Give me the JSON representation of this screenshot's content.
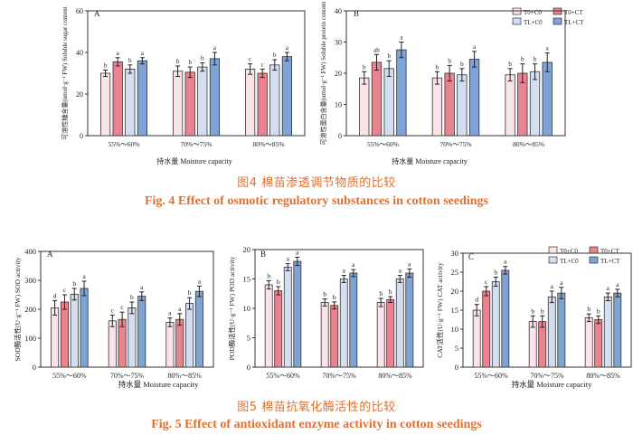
{
  "colors": {
    "T0C0": "#fbe4e7",
    "T0CT": "#e8838f",
    "TLC0": "#d3dff0",
    "TLCT": "#7ea3d6",
    "caption": "#e07030"
  },
  "fig4": {
    "caption_cn": "图4 棉苗渗透调节物质的比较",
    "caption_en": "Fig. 4 Effect of osmotic regulatory substances in cotton seedings",
    "xlabel": "持水量 Moisture capacity"
  },
  "fig5": {
    "caption_cn": "图5 棉苗抗氧化酶活性的比较",
    "caption_en": "Fig. 5 Effect of antioxidant enzyme activity in cotton seedings",
    "xlabel": "持水量 Moisture capacity"
  },
  "chart_data": [
    {
      "type": "bar",
      "panel": "A",
      "categories": [
        "55%～60%",
        "70%～75%",
        "80%～85%"
      ],
      "ylabel": "可溶性糖含量(umol·g⁻¹ FW) Soluble sugar content",
      "ylim": [
        0,
        60
      ],
      "yticks": [
        0,
        20,
        40,
        60
      ],
      "series": [
        {
          "name": "T0+C0",
          "values": [
            30,
            31,
            32
          ],
          "err": [
            1.5,
            2.5,
            2.5
          ],
          "letters": [
            "b",
            "b",
            "c"
          ]
        },
        {
          "name": "T0+CT",
          "values": [
            35.5,
            30.5,
            30
          ],
          "err": [
            2,
            2.5,
            2
          ],
          "letters": [
            "a",
            "b",
            "c"
          ]
        },
        {
          "name": "TL+C0",
          "values": [
            32,
            33,
            34
          ],
          "err": [
            2,
            2,
            2.5
          ],
          "letters": [
            "b",
            "b",
            "b"
          ]
        },
        {
          "name": "TL+CT",
          "values": [
            36,
            37,
            38
          ],
          "err": [
            1.5,
            3,
            2
          ],
          "letters": [
            "a",
            "a",
            "a"
          ]
        }
      ]
    },
    {
      "type": "bar",
      "panel": "B",
      "categories": [
        "55%～60%",
        "70%～75%",
        "80%～85%"
      ],
      "ylabel": "可溶性蛋白含量(umol·g⁻¹ FW) Soluble protein content",
      "ylim": [
        0,
        40
      ],
      "yticks": [
        0,
        10,
        20,
        30,
        40
      ],
      "series": [
        {
          "name": "T0+C0",
          "values": [
            18.5,
            18.5,
            19.5
          ],
          "err": [
            2,
            2,
            2
          ],
          "letters": [
            "b",
            "b",
            "b"
          ]
        },
        {
          "name": "T0+CT",
          "values": [
            23.5,
            20,
            20
          ],
          "err": [
            2.5,
            2.5,
            3
          ],
          "letters": [
            "ab",
            "b",
            "b"
          ]
        },
        {
          "name": "TL+C0",
          "values": [
            21.5,
            19.5,
            20.5
          ],
          "err": [
            2.5,
            2,
            2.5
          ],
          "letters": [
            "b",
            "b",
            "b"
          ]
        },
        {
          "name": "TL+CT",
          "values": [
            27.5,
            24.5,
            23.5
          ],
          "err": [
            2.5,
            2.5,
            3
          ],
          "letters": [
            "a",
            "a",
            "a"
          ]
        }
      ]
    },
    {
      "type": "bar",
      "panel": "A",
      "categories": [
        "55%～60%",
        "70%～75%",
        "80%～85%"
      ],
      "ylabel": "SOD酶活性(U·g⁻¹ FW) SOD activity",
      "ylim": [
        0,
        400
      ],
      "yticks": [
        0,
        100,
        200,
        300,
        400
      ],
      "series": [
        {
          "name": "T0+C0",
          "values": [
            205,
            160,
            155
          ],
          "err": [
            25,
            20,
            15
          ],
          "letters": [
            "d",
            "c",
            "a"
          ]
        },
        {
          "name": "T0+CT",
          "values": [
            225,
            165,
            165
          ],
          "err": [
            25,
            25,
            20
          ],
          "letters": [
            "c",
            "c",
            "a"
          ]
        },
        {
          "name": "TL+C0",
          "values": [
            252,
            205,
            220
          ],
          "err": [
            20,
            20,
            20
          ],
          "letters": [
            "b",
            "b",
            "b"
          ]
        },
        {
          "name": "TL+CT",
          "values": [
            272,
            245,
            262
          ],
          "err": [
            25,
            15,
            18
          ],
          "letters": [
            "a",
            "a",
            "a"
          ]
        }
      ]
    },
    {
      "type": "bar",
      "panel": "B",
      "categories": [
        "55%～60%",
        "70%～75%",
        "80%～85%"
      ],
      "ylabel": "POD酶活性(U·g⁻¹ FW) POD activity",
      "ylim": [
        0,
        20
      ],
      "yticks": [
        0,
        5,
        10,
        15,
        20
      ],
      "series": [
        {
          "name": "T0+C0",
          "values": [
            14,
            11,
            11
          ],
          "err": [
            0.7,
            0.6,
            0.7
          ],
          "letters": [
            "b",
            "b",
            "b"
          ]
        },
        {
          "name": "T0+CT",
          "values": [
            13,
            10.5,
            11.5
          ],
          "err": [
            0.7,
            0.6,
            0.5
          ],
          "letters": [
            "b",
            "b",
            "b"
          ]
        },
        {
          "name": "TL+C0",
          "values": [
            17,
            15,
            15
          ],
          "err": [
            0.6,
            0.6,
            0.6
          ],
          "letters": [
            "a",
            "a",
            "a"
          ]
        },
        {
          "name": "TL+CT",
          "values": [
            18,
            16,
            16
          ],
          "err": [
            0.7,
            0.6,
            0.7
          ],
          "letters": [
            "a",
            "a",
            "a"
          ]
        }
      ]
    },
    {
      "type": "bar",
      "panel": "C",
      "categories": [
        "55%～60%",
        "70%～75%",
        "80%～85%"
      ],
      "ylabel": "CAT活性(U·g⁻¹ FW) CAT activity",
      "ylim": [
        0,
        30
      ],
      "yticks": [
        0,
        5,
        10,
        15,
        20,
        25,
        30
      ],
      "series": [
        {
          "name": "T0+C0",
          "values": [
            15,
            12,
            13
          ],
          "err": [
            1.5,
            1.5,
            1
          ],
          "letters": [
            "d",
            "b",
            "b"
          ]
        },
        {
          "name": "T0+CT",
          "values": [
            20,
            12,
            12.5
          ],
          "err": [
            1.2,
            1.5,
            1
          ],
          "letters": [
            "c",
            "b",
            "b"
          ]
        },
        {
          "name": "TL+C0",
          "values": [
            22.5,
            18.5,
            18.5
          ],
          "err": [
            1.2,
            1.5,
            1
          ],
          "letters": [
            "b",
            "a",
            "a"
          ]
        },
        {
          "name": "TL+CT",
          "values": [
            25.5,
            19.5,
            19.5
          ],
          "err": [
            1,
            1.5,
            1
          ],
          "letters": [
            "a",
            "a",
            "a"
          ]
        }
      ]
    }
  ]
}
